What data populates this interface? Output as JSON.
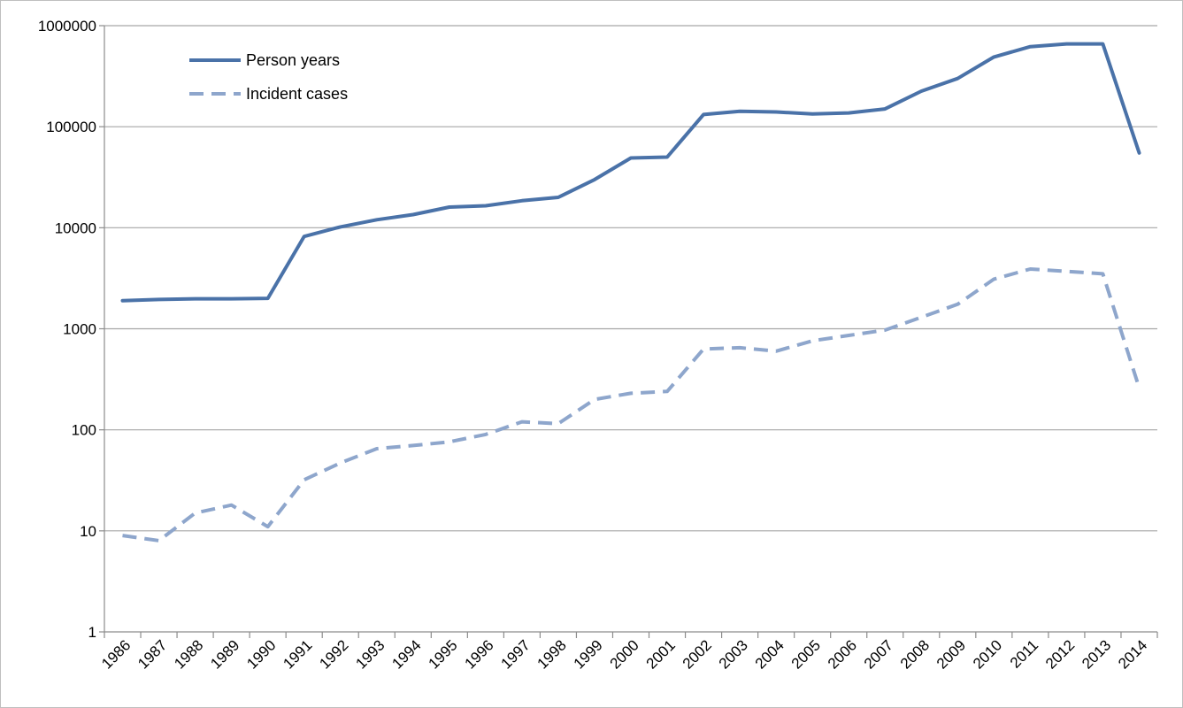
{
  "chart_data": {
    "type": "line",
    "yscale": "log",
    "ylim": [
      1,
      1000000
    ],
    "ytick_labels": [
      "1",
      "10",
      "100",
      "1000",
      "10000",
      "100000",
      "1000000"
    ],
    "grid": "horizontal",
    "legend_placement": "top-left",
    "categories": [
      "1986",
      "1987",
      "1988",
      "1989",
      "1990",
      "1991",
      "1992",
      "1993",
      "1994",
      "1995",
      "1996",
      "1997",
      "1998",
      "1999",
      "2000",
      "2001",
      "2002",
      "2003",
      "2004",
      "2005",
      "2006",
      "2007",
      "2008",
      "2009",
      "2010",
      "2011",
      "2012",
      "2013",
      "2014"
    ],
    "series": [
      {
        "name": "Person years",
        "style": "solid",
        "color": "#4a72a8",
        "values": [
          1900,
          1950,
          1980,
          1980,
          2000,
          8200,
          10200,
          12000,
          13500,
          16000,
          16500,
          18500,
          20000,
          30000,
          49000,
          50000,
          132000,
          142000,
          140000,
          134000,
          137000,
          150000,
          225000,
          300000,
          490000,
          620000,
          660000,
          660000,
          55000
        ]
      },
      {
        "name": "Incident cases",
        "style": "dashed",
        "color": "#8ea6cc",
        "values": [
          9,
          8,
          15,
          18,
          11,
          32,
          47,
          65,
          70,
          76,
          90,
          120,
          115,
          200,
          230,
          240,
          630,
          650,
          600,
          760,
          860,
          970,
          1300,
          1750,
          3100,
          3900,
          3700,
          3500,
          260
        ]
      }
    ]
  }
}
